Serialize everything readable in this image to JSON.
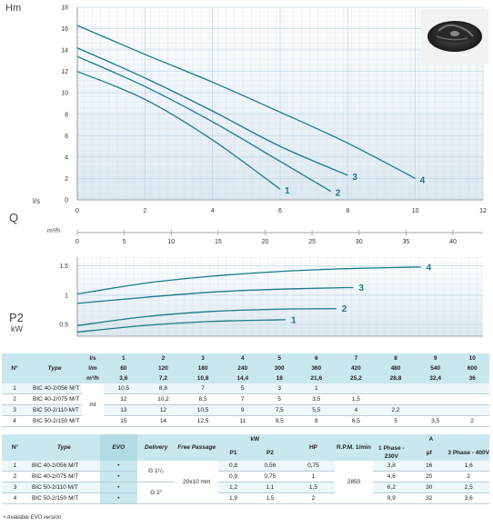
{
  "chart_data": [
    {
      "type": "line",
      "ylabel": "Hm",
      "xlabel": "l/s",
      "xlim": [
        0,
        12
      ],
      "ylim": [
        0,
        18
      ],
      "xticks": [
        0,
        2,
        4,
        6,
        8,
        10,
        12
      ],
      "yticks": [
        0,
        2,
        4,
        6,
        8,
        10,
        12,
        14,
        16,
        18
      ],
      "grid": true,
      "series": [
        {
          "name": "1",
          "x": [
            0,
            2,
            4,
            6
          ],
          "y": [
            12,
            9.4,
            5.6,
            1
          ]
        },
        {
          "name": "2",
          "x": [
            0,
            2,
            4,
            6,
            7.5
          ],
          "y": [
            13.4,
            10.6,
            7.3,
            3.6,
            0.8
          ]
        },
        {
          "name": "3",
          "x": [
            0,
            2,
            4,
            6,
            8
          ],
          "y": [
            14.2,
            11.4,
            8.3,
            5,
            2.3
          ]
        },
        {
          "name": "4",
          "x": [
            0,
            2,
            4,
            6,
            8,
            10
          ],
          "y": [
            16.3,
            13.6,
            11,
            8.2,
            5.3,
            2
          ]
        }
      ]
    },
    {
      "type": "axis",
      "xlabel": "Q",
      "unit": "m³/h",
      "xlim": [
        0,
        43.2
      ],
      "xticks": [
        0,
        5,
        10,
        15,
        20,
        25,
        30,
        35,
        40
      ]
    },
    {
      "type": "line",
      "ylabel": "P2",
      "yunit": "kW",
      "xlim": [
        0,
        43.2
      ],
      "ylim": [
        0.3,
        1.65
      ],
      "yticks": [
        0.5,
        1,
        1.5
      ],
      "grid": true,
      "series": [
        {
          "name": "1",
          "x": [
            0,
            7,
            14,
            21.6
          ],
          "y": [
            0.37,
            0.48,
            0.55,
            0.58
          ]
        },
        {
          "name": "2",
          "x": [
            0,
            7,
            14,
            21,
            27
          ],
          "y": [
            0.48,
            0.63,
            0.72,
            0.76,
            0.77
          ]
        },
        {
          "name": "3",
          "x": [
            0,
            7,
            14,
            21,
            28.8
          ],
          "y": [
            0.86,
            0.96,
            1.05,
            1.1,
            1.13
          ]
        },
        {
          "name": "4",
          "x": [
            0,
            7,
            14,
            21,
            28,
            36
          ],
          "y": [
            1.02,
            1.2,
            1.32,
            1.4,
            1.45,
            1.48
          ]
        }
      ]
    }
  ],
  "labels": {
    "hm": "Hm",
    "ls": "l/s",
    "q": "Q",
    "m3h": "m³/h",
    "p2": "P2",
    "kw": "kW"
  },
  "colors": {
    "curve": "#1a7a8a",
    "grid_bg": "#eaf2f7",
    "header_bg": "#c9e7ee"
  },
  "photo": "impeller-image",
  "table1": {
    "h_n": "N°",
    "h_type": "Type",
    "units": [
      "l/s",
      "l/m",
      "m³/h"
    ],
    "cols": [
      [
        "1",
        "60",
        "3,6"
      ],
      [
        "2",
        "120",
        "7,2"
      ],
      [
        "3",
        "180",
        "10,8"
      ],
      [
        "4",
        "240",
        "14,4"
      ],
      [
        "5",
        "300",
        "18"
      ],
      [
        "6",
        "360",
        "21,6"
      ],
      [
        "7",
        "420",
        "25,2"
      ],
      [
        "8",
        "480",
        "28,8"
      ],
      [
        "9",
        "540",
        "32,4"
      ],
      [
        "10",
        "600",
        "36"
      ]
    ],
    "hunit": "mt",
    "rows": [
      {
        "n": "1",
        "type": "BIC 40-2/056 M/T",
        "v": [
          "10,5",
          "8,8",
          "7",
          "5",
          "3",
          "1",
          "",
          "",
          "",
          ""
        ]
      },
      {
        "n": "2",
        "type": "BIC 40-2/075 M/T",
        "v": [
          "12",
          "10,2",
          "8,5",
          "7",
          "5",
          "3,5",
          "1,5",
          "",
          "",
          ""
        ]
      },
      {
        "n": "3",
        "type": "BIC 50-2/110 M/T",
        "v": [
          "13",
          "12",
          "10,5",
          "9",
          "7,5",
          "5,5",
          "4",
          "2,2",
          "",
          ""
        ]
      },
      {
        "n": "4",
        "type": "BIC 50-2/150 M/T",
        "v": [
          "15",
          "14",
          "12,5",
          "11",
          "9,5",
          "8",
          "6,5",
          "5",
          "3,5",
          "2"
        ]
      }
    ]
  },
  "table2": {
    "h_n": "N°",
    "h_type": "Type",
    "h_evo": "EVO",
    "h_delivery": "Delivery",
    "h_free": "Free Passage",
    "h_kw": "kW",
    "h_p1": "P1",
    "h_p2": "P2",
    "h_hp": "HP",
    "h_rpm": "R.P.M. 1/min",
    "h_a": "A",
    "h_1ph": "1 Phase - 230V",
    "h_uf": "μf",
    "h_3ph": "3 Phase - 400V",
    "delivery_1": "G 1¹/₂",
    "delivery_2": "G 2\"",
    "free": "20x10 mm",
    "rpm": "2850",
    "bullet": "•",
    "rows": [
      {
        "n": "1",
        "type": "BIC 40-2/056 M/T",
        "p1": "0,8",
        "p2": "0,56",
        "hp": "0,75",
        "a1": "3,8",
        "uf": "16",
        "a3": "1,6"
      },
      {
        "n": "2",
        "type": "BIC 40-2/075 M/T",
        "p1": "0,9",
        "p2": "0,75",
        "hp": "1",
        "a1": "4,6",
        "uf": "20",
        "a3": "2"
      },
      {
        "n": "3",
        "type": "BIC 50-2/110 M/T",
        "p1": "1,2",
        "p2": "1,1",
        "hp": "1,5",
        "a1": "6,2",
        "uf": "30",
        "a3": "2,5"
      },
      {
        "n": "4",
        "type": "BIC 50-2/150 M/T",
        "p1": "1,9",
        "p2": "1,5",
        "hp": "2",
        "a1": "9,9",
        "uf": "32",
        "a3": "3,6"
      }
    ]
  },
  "footnote": "• Available EVO version"
}
